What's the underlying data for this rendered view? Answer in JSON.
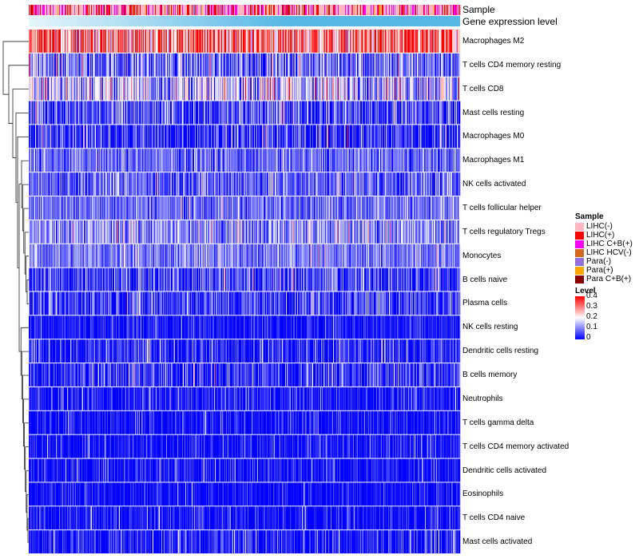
{
  "chart_data": {
    "type": "heatmap",
    "title": "",
    "annotations": [
      {
        "name": "Sample",
        "label": "Sample"
      },
      {
        "name": "Gene expression level",
        "label": "Gene expression level",
        "colors": [
          "#e6f5fb",
          "#56b8e6"
        ]
      }
    ],
    "rows": [
      {
        "label": "Macrophages M2",
        "mean": 0.3,
        "spread": 0.09
      },
      {
        "label": "T cells CD4 memory resting",
        "mean": 0.09,
        "spread": 0.06
      },
      {
        "label": "T cells CD8",
        "mean": 0.15,
        "spread": 0.08
      },
      {
        "label": "Mast cells resting",
        "mean": 0.06,
        "spread": 0.06
      },
      {
        "label": "Macrophages M0",
        "mean": 0.04,
        "spread": 0.06
      },
      {
        "label": "Macrophages M1",
        "mean": 0.08,
        "spread": 0.04
      },
      {
        "label": "NK cells activated",
        "mean": 0.08,
        "spread": 0.05
      },
      {
        "label": "T cells follicular helper",
        "mean": 0.09,
        "spread": 0.04
      },
      {
        "label": "T cells regulatory  Tregs",
        "mean": 0.11,
        "spread": 0.05
      },
      {
        "label": "Monocytes",
        "mean": 0.1,
        "spread": 0.04
      },
      {
        "label": "B cells naive",
        "mean": 0.05,
        "spread": 0.05
      },
      {
        "label": "Plasma cells",
        "mean": 0.05,
        "spread": 0.05
      },
      {
        "label": "NK cells resting",
        "mean": 0.02,
        "spread": 0.03
      },
      {
        "label": "Dendritic cells resting",
        "mean": 0.03,
        "spread": 0.05
      },
      {
        "label": "B cells memory",
        "mean": 0.04,
        "spread": 0.05
      },
      {
        "label": "Neutrophils",
        "mean": 0.02,
        "spread": 0.04
      },
      {
        "label": "T cells gamma delta",
        "mean": 0.015,
        "spread": 0.04
      },
      {
        "label": "T cells CD4 memory activated",
        "mean": 0.015,
        "spread": 0.035
      },
      {
        "label": "Dendritic cells activated",
        "mean": 0.015,
        "spread": 0.035
      },
      {
        "label": "Eosinophils",
        "mean": 0.01,
        "spread": 0.03
      },
      {
        "label": "T cells CD4 naive",
        "mean": 0.01,
        "spread": 0.035
      },
      {
        "label": "Mast cells activated",
        "mean": 0.02,
        "spread": 0.05
      }
    ],
    "n_samples": 540,
    "color_scale": {
      "min": 0,
      "max": 0.4,
      "colors": [
        "#0000ff",
        "#ffffff",
        "#ff0000"
      ]
    },
    "legend": {
      "sample_title": "Sample",
      "sample_items": [
        {
          "label": "LIHC(-)",
          "color": "#ffb6c1"
        },
        {
          "label": "LIHC(+)",
          "color": "#ff0000"
        },
        {
          "label": "LIHC C+B(+)",
          "color": "#ff00ff"
        },
        {
          "label": "LIHC HCV(-)",
          "color": "#d2691e"
        },
        {
          "label": "Para(-)",
          "color": "#9370db"
        },
        {
          "label": "Para(+)",
          "color": "#ffa500"
        },
        {
          "label": "Para C+B(+)",
          "color": "#8b0000"
        }
      ],
      "level_title": "Level",
      "level_ticks": [
        "0.4",
        "0.3",
        "0.2",
        "0.1",
        "0"
      ]
    }
  }
}
